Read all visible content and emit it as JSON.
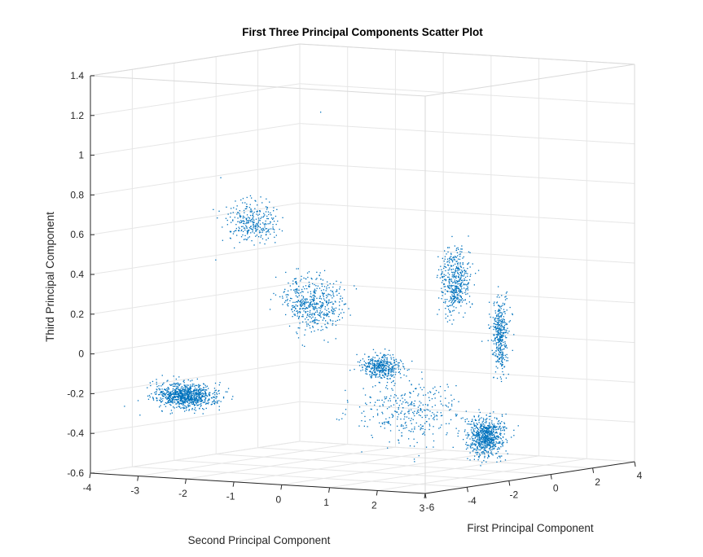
{
  "chart_data": {
    "type": "scatter",
    "title": "First Three Principal Components Scatter Plot",
    "xlabel": "First Principal Component",
    "ylabel": "Second Principal Component",
    "zlabel": "Third Principal Component",
    "xlim": [
      -6,
      4
    ],
    "ylim": [
      -4,
      3
    ],
    "zlim": [
      -0.6,
      1.4
    ],
    "xticks": [
      "-6",
      "-4",
      "-2",
      "0",
      "2",
      "4"
    ],
    "yticks": [
      "-4",
      "-3",
      "-2",
      "-1",
      "0",
      "1",
      "2",
      "3"
    ],
    "zticks": [
      "-0.6",
      "-0.4",
      "-0.2",
      "0",
      "0.2",
      "0.4",
      "0.6",
      "0.8",
      "1",
      "1.2",
      "1.4"
    ],
    "grid": true,
    "marker_color": "#0072BD",
    "clusters": [
      {
        "name_note": "",
        "x": -6.0,
        "y": -2.0,
        "z": -0.18,
        "spread": [
          0.25,
          0.3,
          0.03
        ],
        "count": 900
      },
      {
        "x": -5.6,
        "y": -0.8,
        "z": 0.7,
        "spread": [
          0.1,
          0.25,
          0.05
        ],
        "count": 300
      },
      {
        "x": -5.0,
        "y": 0.2,
        "z": 0.3,
        "spread": [
          0.15,
          0.3,
          0.07
        ],
        "count": 500
      },
      {
        "x": -4.0,
        "y": 1.2,
        "z": -0.02,
        "spread": [
          0.15,
          0.2,
          0.03
        ],
        "count": 400
      },
      {
        "x": -1.8,
        "y": 1.8,
        "z": 0.38,
        "spread": [
          0.2,
          0.12,
          0.08
        ],
        "count": 450
      },
      {
        "x": -0.6,
        "y": 2.2,
        "z": 0.1,
        "spread": [
          0.1,
          0.08,
          0.09
        ],
        "count": 380
      },
      {
        "x": -2.2,
        "y": 2.6,
        "z": -0.38,
        "spread": [
          0.3,
          0.12,
          0.05
        ],
        "count": 700
      },
      {
        "x": -4.0,
        "y": 1.8,
        "z": -0.25,
        "spread": [
          0.5,
          0.5,
          0.08
        ],
        "count": 350
      }
    ],
    "outliers": [
      {
        "x": -3.0,
        "y": -0.5,
        "z": 1.22
      },
      {
        "x": -4.8,
        "y": -1.8,
        "z": 0.9
      },
      {
        "x": -5.5,
        "y": -1.6,
        "z": 0.5
      },
      {
        "x": -4.5,
        "y": -0.6,
        "z": 0.34
      },
      {
        "x": -4.2,
        "y": 0.1,
        "z": 0.1
      }
    ]
  }
}
